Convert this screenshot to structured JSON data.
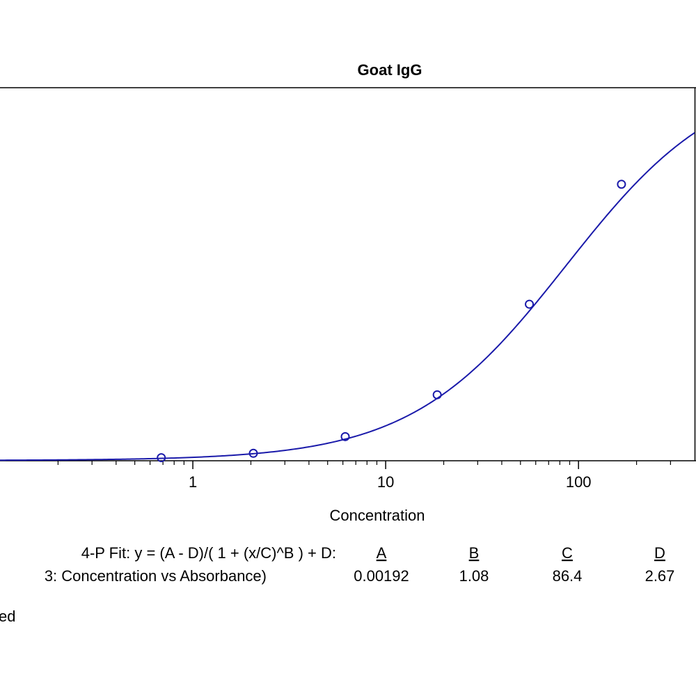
{
  "chart_data": {
    "type": "scatter",
    "title": "Goat IgG",
    "xlabel": "Concentration",
    "ylabel": "",
    "x_scale": "log",
    "xlim": [
      0.1,
      400
    ],
    "ylim": [
      0,
      2.55
    ],
    "x_tick_labels": [
      "1",
      "10",
      "100"
    ],
    "x_ticks": [
      1,
      10,
      100
    ],
    "grid": false,
    "series": [
      {
        "x": [
          0.686,
          2.06,
          6.17,
          18.5,
          55.6,
          167
        ],
        "y": [
          0.021,
          0.051,
          0.165,
          0.451,
          1.07,
          1.89
        ]
      }
    ],
    "fit": {
      "model": "4-P",
      "equation_label": "4-P Fit:  y = (A - D)/( 1 + (x/C)^B ) + D:",
      "series_label": "3: Concentration vs Absorbance)",
      "A": 0.00192,
      "B": 1.08,
      "C": 86.4,
      "D": 2.67,
      "params": [
        {
          "name": "A",
          "value": "0.00192"
        },
        {
          "name": "B",
          "value": "1.08"
        },
        {
          "name": "C",
          "value": "86.4"
        },
        {
          "name": "D",
          "value": "2.67"
        }
      ]
    },
    "footer_text": "ed"
  },
  "colors": {
    "series": "#1a1aaa",
    "axis": "#000000"
  }
}
